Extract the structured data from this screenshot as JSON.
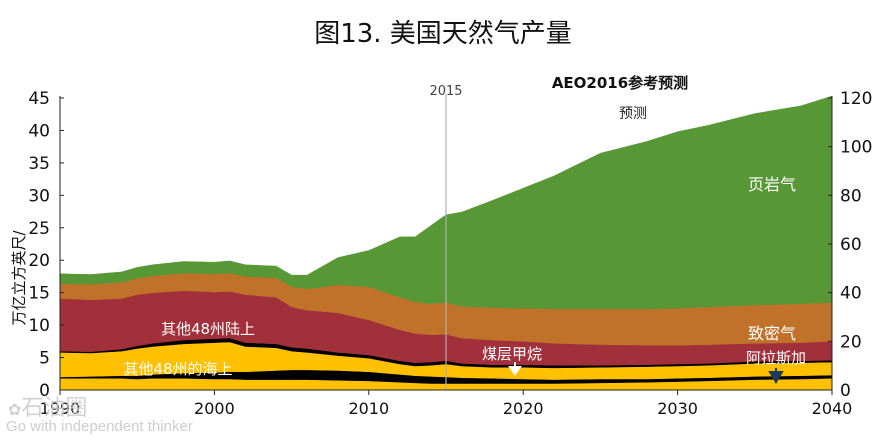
{
  "chart_data": {
    "type": "area",
    "title": "图13. 美国天然气产量",
    "subtitle": "AEO2016参考预测",
    "forecast_label": "预测",
    "divider_label": "2015",
    "divider_year": 2015,
    "ylabel_left": "万亿立方英尺/",
    "x_ticks": [
      "1990",
      "2000",
      "2010",
      "2020",
      "2030",
      "2040"
    ],
    "x_tick_values": [
      1990,
      2000,
      2010,
      2020,
      2030,
      2040
    ],
    "y_left_ticks": [
      "0",
      "5",
      "10",
      "15",
      "20",
      "25",
      "30",
      "35",
      "40",
      "45"
    ],
    "y_right_ticks": [
      "0",
      "20",
      "40",
      "60",
      "80",
      "100",
      "120"
    ],
    "xlim": [
      1990,
      2040
    ],
    "ylim_left": [
      0,
      45
    ],
    "ylim_right": [
      0,
      120
    ],
    "grid": false,
    "years": [
      1990,
      1992,
      1994,
      1995,
      1996,
      1998,
      2000,
      2001,
      2002,
      2004,
      2005,
      2006,
      2008,
      2010,
      2012,
      2013,
      2014,
      2015,
      2016,
      2018,
      2020,
      2022,
      2025,
      2028,
      2030,
      2032,
      2035,
      2038,
      2040
    ],
    "series": [
      {
        "name": "阿拉斯加",
        "color": "#ffc000",
        "values": [
          1.8,
          1.8,
          1.8,
          1.7,
          1.8,
          1.8,
          1.7,
          1.7,
          1.6,
          1.6,
          1.6,
          1.6,
          1.5,
          1.4,
          1.2,
          1.1,
          1.0,
          1.0,
          1.0,
          1.0,
          1.0,
          1.0,
          1.1,
          1.2,
          1.3,
          1.4,
          1.6,
          1.7,
          1.8
        ]
      },
      {
        "name": "",
        "color": "#000000",
        "values": [
          0.2,
          0.3,
          0.4,
          0.5,
          0.6,
          0.8,
          1.0,
          1.1,
          1.2,
          1.4,
          1.5,
          1.5,
          1.5,
          1.4,
          1.2,
          1.1,
          1.1,
          1.0,
          0.9,
          0.8,
          0.7,
          0.6,
          0.6,
          0.5,
          0.5,
          0.5,
          0.5,
          0.5,
          0.5
        ]
      },
      {
        "name": "其他48州的海上",
        "color": "#ffc000",
        "values": [
          3.8,
          3.6,
          3.8,
          4.2,
          4.3,
          4.5,
          4.6,
          4.6,
          3.9,
          3.5,
          2.9,
          2.7,
          2.3,
          2.1,
          1.6,
          1.5,
          1.7,
          2.0,
          1.8,
          1.7,
          1.8,
          1.8,
          1.8,
          1.9,
          1.9,
          1.9,
          2.0,
          2.0,
          2.0
        ]
      },
      {
        "name": "",
        "color": "#000000",
        "values": [
          0.2,
          0.2,
          0.3,
          0.4,
          0.5,
          0.6,
          0.6,
          0.6,
          0.6,
          0.6,
          0.6,
          0.6,
          0.5,
          0.5,
          0.5,
          0.5,
          0.5,
          0.5,
          0.4,
          0.4,
          0.4,
          0.4,
          0.3,
          0.3,
          0.3,
          0.3,
          0.3,
          0.3,
          0.3
        ]
      },
      {
        "name": "煤层甲烷",
        "color": "#a2303a",
        "values": [
          0.2,
          0.4,
          0.7,
          0.9,
          1.0,
          1.2,
          1.4,
          1.6,
          1.7,
          1.8,
          1.8,
          1.8,
          1.8,
          1.7,
          1.5,
          1.4,
          1.3,
          1.3,
          1.2,
          1.1,
          1.0,
          0.9,
          0.8,
          0.7,
          0.7,
          0.7,
          0.6,
          0.6,
          0.6
        ]
      },
      {
        "name": "其他48州陆上",
        "color": "#a2303a",
        "values": [
          7.9,
          7.6,
          7.1,
          7.0,
          6.8,
          6.4,
          5.8,
          5.6,
          5.7,
          5.4,
          4.4,
          4.1,
          4.3,
          3.7,
          3.3,
          3.1,
          2.9,
          2.8,
          2.7,
          2.7,
          2.6,
          2.5,
          2.4,
          2.3,
          2.2,
          2.2,
          2.2,
          2.2,
          2.3
        ]
      },
      {
        "name": "致密气",
        "color": "#c0722a",
        "values": [
          2.3,
          2.4,
          2.5,
          2.5,
          2.6,
          2.7,
          2.8,
          2.8,
          2.8,
          3.0,
          3.1,
          3.3,
          4.3,
          5.1,
          5.0,
          4.9,
          4.8,
          4.9,
          4.9,
          5.0,
          5.1,
          5.3,
          5.5,
          5.6,
          5.7,
          5.8,
          5.9,
          6.0,
          6.0
        ]
      },
      {
        "name": "页岩气",
        "color": "#579735",
        "values": [
          1.5,
          1.5,
          1.6,
          1.7,
          1.7,
          1.8,
          1.8,
          1.9,
          1.8,
          1.8,
          1.8,
          2.1,
          4.2,
          5.6,
          9.3,
          10.0,
          12.0,
          13.5,
          14.5,
          16.5,
          18.5,
          20.5,
          24.0,
          25.8,
          27.2,
          28.0,
          29.5,
          30.5,
          31.8
        ]
      }
    ]
  },
  "labels": {
    "shale": "页岩气",
    "tight": "致密气",
    "onshore": "其他48州陆上",
    "cbm": "煤层甲烷",
    "offshore": "其他48州的海上",
    "alaska": "阿拉斯加"
  },
  "watermark": {
    "brand": "石油圈",
    "tagline": "Go with independent thinker"
  }
}
